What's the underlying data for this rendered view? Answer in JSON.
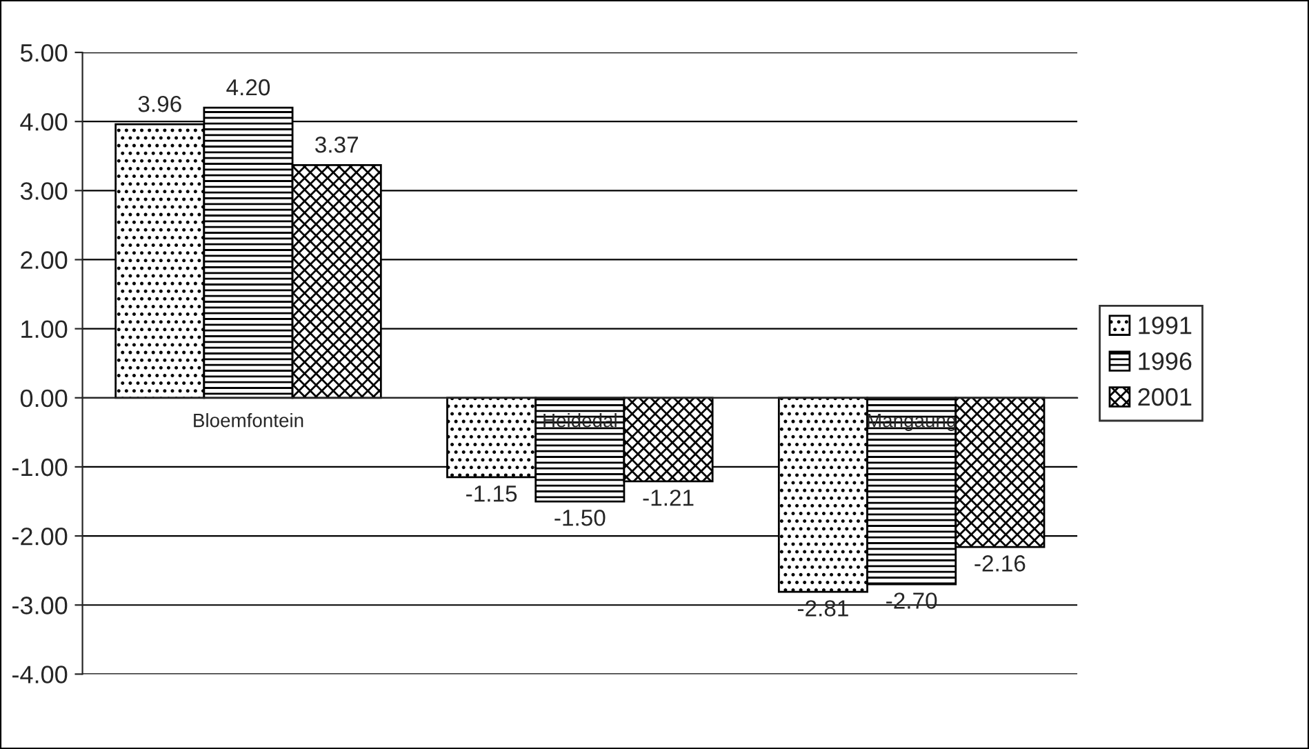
{
  "chart_data": {
    "type": "bar",
    "categories": [
      "Bloemfontein",
      "Heidedal",
      "Mangaung"
    ],
    "series": [
      {
        "name": "1991",
        "color": "#000000",
        "values": [
          3.96,
          -1.15,
          -2.81
        ],
        "value_labels": [
          "3.96",
          "-1.15",
          "-2.81"
        ]
      },
      {
        "name": "1996",
        "color": "#000000",
        "values": [
          4.2,
          -1.5,
          -2.7
        ],
        "value_labels": [
          "4.20",
          "-1.50",
          "-2.70"
        ]
      },
      {
        "name": "2001",
        "color": "#000000",
        "values": [
          3.37,
          -1.21,
          -2.16
        ],
        "value_labels": [
          "3.37",
          "-1.21",
          "-2.16"
        ]
      }
    ],
    "ylim": [
      -4,
      5
    ],
    "yticks": [
      {
        "value": -4,
        "label": "-4.00"
      },
      {
        "value": -3,
        "label": "-3.00"
      },
      {
        "value": -2,
        "label": "-2.00"
      },
      {
        "value": -1,
        "label": "-1.00"
      },
      {
        "value": 0,
        "label": "0.00"
      },
      {
        "value": 1,
        "label": "1.00"
      },
      {
        "value": 2,
        "label": "2.00"
      },
      {
        "value": 3,
        "label": "3.00"
      },
      {
        "value": 4,
        "label": "4.00"
      },
      {
        "value": 5,
        "label": "5.00"
      }
    ],
    "grid": "y",
    "legend": "right"
  }
}
